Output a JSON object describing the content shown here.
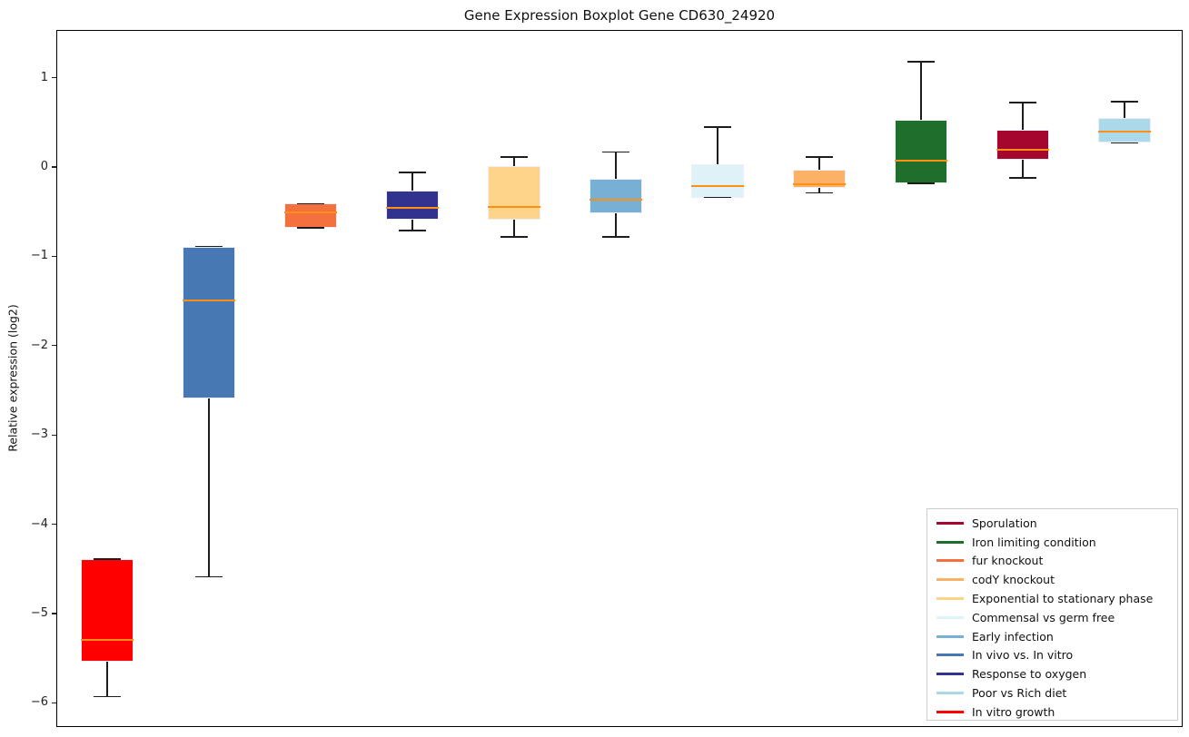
{
  "title": "Gene Expression Boxplot Gene CD630_24920",
  "ylabel": "Relative expression (log2)",
  "chart_data": {
    "type": "boxplot",
    "title": "Gene Expression Boxplot Gene CD630_24920",
    "xlabel": "",
    "ylabel": "Relative expression (log2)",
    "ylim": [
      -6.27,
      1.535
    ],
    "yticks": [
      1,
      0,
      -1,
      -2,
      -3,
      -4,
      -5,
      -6
    ],
    "yticklabels": [
      "1",
      "0",
      "−1",
      "−2",
      "−3",
      "−4",
      "−5",
      "−6"
    ],
    "grid": false,
    "legend_position": "lower right",
    "median_color": "#ff9015",
    "whisker_color": "#1c1c1c",
    "series": [
      {
        "name": "In vitro growth",
        "color": "#fe0000",
        "whislo": -5.92,
        "q1": -5.53,
        "med": -5.28,
        "q3": -4.38,
        "whishi": -4.38
      },
      {
        "name": "In vivo vs. In vitro",
        "color": "#4878b4",
        "whislo": -4.58,
        "q1": -2.58,
        "med": -1.48,
        "q3": -0.88,
        "whishi": -0.88
      },
      {
        "name": "fur knockout",
        "color": "#f4713f",
        "whislo": -0.67,
        "q1": -0.67,
        "med": -0.5,
        "q3": -0.4,
        "whishi": -0.4
      },
      {
        "name": "Response to oxygen",
        "color": "#32338e",
        "whislo": -0.7,
        "q1": -0.58,
        "med": -0.45,
        "q3": -0.25,
        "whishi": -0.05
      },
      {
        "name": "Exponential to stationary phase",
        "color": "#fdd48a",
        "whislo": -0.77,
        "q1": -0.58,
        "med": -0.44,
        "q3": 0.02,
        "whishi": 0.12
      },
      {
        "name": "Early infection",
        "color": "#77afd5",
        "whislo": -0.77,
        "q1": -0.51,
        "med": -0.36,
        "q3": -0.12,
        "whishi": 0.18
      },
      {
        "name": "Commensal vs germ free",
        "color": "#dff2f8",
        "whislo": -0.33,
        "q1": -0.33,
        "med": -0.2,
        "q3": 0.04,
        "whishi": 0.46
      },
      {
        "name": "codY knockout",
        "color": "#fcb266",
        "whislo": -0.28,
        "q1": -0.22,
        "med": -0.18,
        "q3": -0.02,
        "whishi": 0.12
      },
      {
        "name": "Iron limiting condition",
        "color": "#1f6e2c",
        "whislo": -0.17,
        "q1": -0.17,
        "med": 0.08,
        "q3": 0.54,
        "whishi": 1.19
      },
      {
        "name": "Sporulation",
        "color": "#a4062e",
        "whislo": -0.11,
        "q1": 0.09,
        "med": 0.2,
        "q3": 0.43,
        "whishi": 0.73
      },
      {
        "name": "Poor vs Rich diet",
        "color": "#abd9e9",
        "whislo": 0.28,
        "q1": 0.28,
        "med": 0.41,
        "q3": 0.56,
        "whishi": 0.74
      }
    ],
    "legend": [
      {
        "label": "Sporulation",
        "color": "#a4062e"
      },
      {
        "label": "Iron limiting condition",
        "color": "#1f6e2c"
      },
      {
        "label": "fur knockout",
        "color": "#f4713f"
      },
      {
        "label": "codY knockout",
        "color": "#fcb266"
      },
      {
        "label": "Exponential to stationary phase",
        "color": "#fdd48a"
      },
      {
        "label": "Commensal vs germ free",
        "color": "#dff2f8"
      },
      {
        "label": "Early infection",
        "color": "#77afd5"
      },
      {
        "label": "In vivo vs. In vitro",
        "color": "#4878b4"
      },
      {
        "label": "Response to oxygen",
        "color": "#32338e"
      },
      {
        "label": "Poor vs Rich diet",
        "color": "#abd9e9"
      },
      {
        "label": "In vitro growth",
        "color": "#fe0000"
      }
    ]
  }
}
